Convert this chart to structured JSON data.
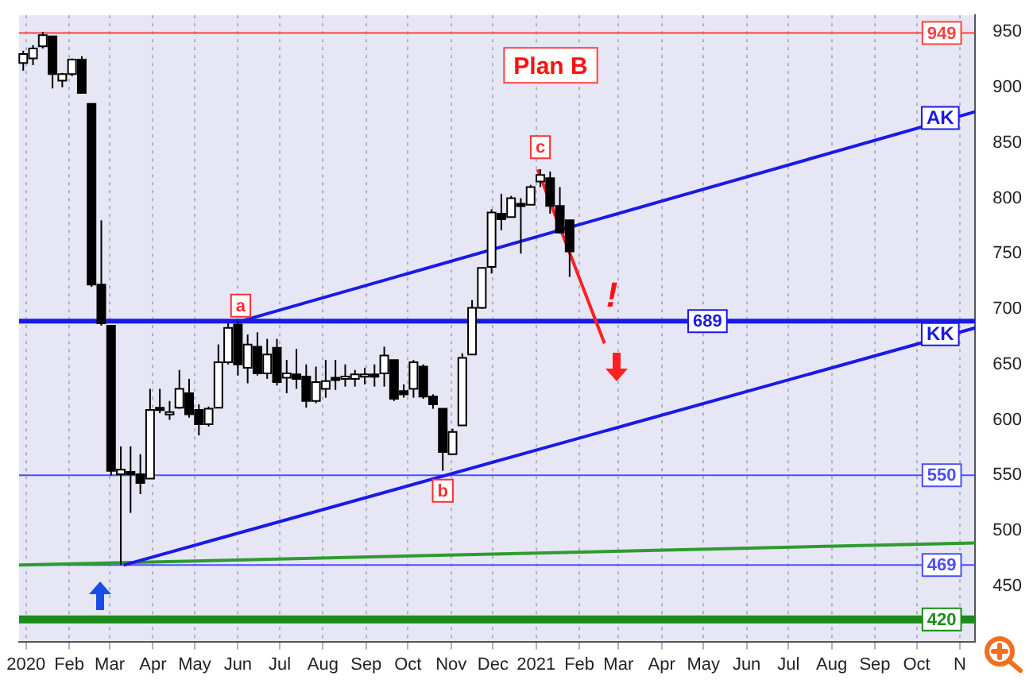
{
  "chart_data": {
    "type": "candlestick",
    "x": [
      "2019-12-30",
      "2020-01-06",
      "2020-01-13",
      "2020-01-20",
      "2020-01-27",
      "2020-02-03",
      "2020-02-10",
      "2020-02-17",
      "2020-02-24",
      "2020-03-02",
      "2020-03-09",
      "2020-03-16",
      "2020-03-23",
      "2020-03-30",
      "2020-04-06",
      "2020-04-13",
      "2020-04-20",
      "2020-04-27",
      "2020-05-04",
      "2020-05-11",
      "2020-05-18",
      "2020-05-25",
      "2020-06-01",
      "2020-06-08",
      "2020-06-15",
      "2020-06-22",
      "2020-06-29",
      "2020-07-06",
      "2020-07-13",
      "2020-07-20",
      "2020-07-27",
      "2020-08-03",
      "2020-08-10",
      "2020-08-17",
      "2020-08-24",
      "2020-08-31",
      "2020-09-07",
      "2020-09-14",
      "2020-09-21",
      "2020-09-28",
      "2020-10-05",
      "2020-10-12",
      "2020-10-19",
      "2020-10-26",
      "2020-11-02",
      "2020-11-09",
      "2020-11-16",
      "2020-11-23",
      "2020-11-30",
      "2020-12-07",
      "2020-12-14",
      "2020-12-21",
      "2020-12-28",
      "2021-01-04",
      "2021-01-11",
      "2021-01-18",
      "2021-01-25"
    ],
    "ohlc": [
      [
        922,
        933,
        915,
        930
      ],
      [
        926,
        938,
        920,
        935
      ],
      [
        937,
        950,
        935,
        947
      ],
      [
        946,
        946,
        899,
        912
      ],
      [
        906,
        913,
        900,
        912
      ],
      [
        912,
        926,
        910,
        925
      ],
      [
        925,
        928,
        895,
        895
      ],
      [
        885,
        885,
        720,
        722
      ],
      [
        722,
        780,
        685,
        687
      ],
      [
        685,
        685,
        550,
        554
      ],
      [
        551,
        576,
        469,
        555
      ],
      [
        553,
        576,
        516,
        551
      ],
      [
        551,
        569,
        533,
        543
      ],
      [
        547,
        628,
        547,
        609
      ],
      [
        611,
        628,
        606,
        609
      ],
      [
        605,
        617,
        600,
        607
      ],
      [
        611,
        645,
        610,
        628
      ],
      [
        624,
        637,
        602,
        605
      ],
      [
        609,
        614,
        586,
        596
      ],
      [
        596,
        612,
        594,
        610
      ],
      [
        611,
        668,
        611,
        652
      ],
      [
        652,
        687,
        650,
        683
      ],
      [
        686,
        689,
        640,
        650
      ],
      [
        647,
        677,
        633,
        668
      ],
      [
        666,
        679,
        640,
        642
      ],
      [
        642,
        673,
        637,
        659
      ],
      [
        665,
        673,
        631,
        634
      ],
      [
        638,
        654,
        624,
        642
      ],
      [
        641,
        664,
        628,
        637
      ],
      [
        639,
        650,
        611,
        617
      ],
      [
        617,
        648,
        615,
        634
      ],
      [
        628,
        654,
        620,
        635
      ],
      [
        638,
        654,
        627,
        637
      ],
      [
        637,
        650,
        630,
        639
      ],
      [
        637,
        645,
        630,
        641
      ],
      [
        639,
        647,
        632,
        641
      ],
      [
        641,
        650,
        630,
        639
      ],
      [
        642,
        666,
        630,
        658
      ],
      [
        654,
        654,
        617,
        619
      ],
      [
        626,
        632,
        620,
        623
      ],
      [
        628,
        654,
        620,
        652
      ],
      [
        648,
        650,
        619,
        621
      ],
      [
        621,
        623,
        610,
        614
      ],
      [
        610,
        610,
        554,
        571
      ],
      [
        569,
        592,
        569,
        589
      ],
      [
        595,
        660,
        595,
        656
      ],
      [
        659,
        708,
        659,
        701
      ],
      [
        701,
        737,
        700,
        737
      ],
      [
        738,
        790,
        732,
        787
      ],
      [
        786,
        804,
        771,
        781
      ],
      [
        783,
        802,
        783,
        800
      ],
      [
        795,
        800,
        750,
        794
      ],
      [
        794,
        812,
        794,
        810
      ],
      [
        815,
        826,
        810,
        821
      ],
      [
        818,
        824,
        786,
        793
      ],
      [
        793,
        810,
        768,
        769
      ],
      [
        780,
        780,
        729,
        752
      ]
    ],
    "series": [
      {
        "type": "line",
        "name": "AK",
        "color": "#1a1ae6",
        "x": [
          "2020-06-03",
          "2021-11-12"
        ],
        "values": [
          689,
          878
        ]
      },
      {
        "type": "line",
        "name": "KK",
        "color": "#1a1ae6",
        "x": [
          "2020-03-11",
          "2021-11-12"
        ],
        "values": [
          469,
          683
        ]
      },
      {
        "type": "line",
        "color": "#2e9b2e",
        "x": [
          "2019-12-27",
          "2021-11-12"
        ],
        "values": [
          469,
          489
        ]
      },
      {
        "type": "line",
        "color": "#ff2020",
        "x": [
          "2021-01-02",
          "2021-02-19"
        ],
        "values": [
          826,
          669
        ]
      }
    ],
    "ref_lines": [
      {
        "axis": "y",
        "value": 949,
        "label": "949",
        "color": "#ff4040"
      },
      {
        "axis": "y",
        "value": 689,
        "label": "689",
        "color": "#1a1ae6"
      },
      {
        "axis": "y",
        "value": 550,
        "label": "550",
        "color": "#4d4dff"
      },
      {
        "axis": "y",
        "value": 469,
        "label": "469",
        "color": "#4d4dff"
      },
      {
        "axis": "y",
        "value": 420,
        "label": "420",
        "color": "#1a8c1a"
      }
    ],
    "annotations": [
      "Plan B",
      {
        "text": "a",
        "x": "2020-06-03",
        "y": 703
      },
      {
        "text": "b",
        "x": "2020-10-26",
        "y": 536
      },
      {
        "text": "c",
        "x": "2021-01-04",
        "y": 846
      },
      "!"
    ],
    "xlim": [
      "2019-12-27",
      "2021-11-12"
    ],
    "xticks": [
      {
        "value": "2020-01",
        "label": "2020"
      },
      {
        "value": "2020-02",
        "label": "Feb"
      },
      {
        "value": "2020-03",
        "label": "Mar"
      },
      {
        "value": "2020-04",
        "label": "Apr"
      },
      {
        "value": "2020-05",
        "label": "May"
      },
      {
        "value": "2020-06",
        "label": "Jun"
      },
      {
        "value": "2020-07",
        "label": "Jul"
      },
      {
        "value": "2020-08",
        "label": "Aug"
      },
      {
        "value": "2020-09",
        "label": "Sep"
      },
      {
        "value": "2020-10",
        "label": "Oct"
      },
      {
        "value": "2020-11",
        "label": "Nov"
      },
      {
        "value": "2020-12",
        "label": "Dec"
      },
      {
        "value": "2021-01",
        "label": "2021"
      },
      {
        "value": "2021-02",
        "label": "Feb"
      },
      {
        "value": "2021-03",
        "label": "Mar"
      },
      {
        "value": "2021-04",
        "label": "Apr"
      },
      {
        "value": "2021-05",
        "label": "May"
      },
      {
        "value": "2021-06",
        "label": "Jun"
      },
      {
        "value": "2021-07",
        "label": "Jul"
      },
      {
        "value": "2021-08",
        "label": "Aug"
      },
      {
        "value": "2021-09",
        "label": "Sep"
      },
      {
        "value": "2021-10",
        "label": "Oct"
      },
      {
        "value": "2021-11",
        "label": "N"
      }
    ],
    "ylim": [
      400,
      965
    ],
    "yticks": [
      450,
      500,
      550,
      600,
      650,
      700,
      750,
      800,
      850,
      900,
      950
    ],
    "grid": "x",
    "legend": false
  }
}
